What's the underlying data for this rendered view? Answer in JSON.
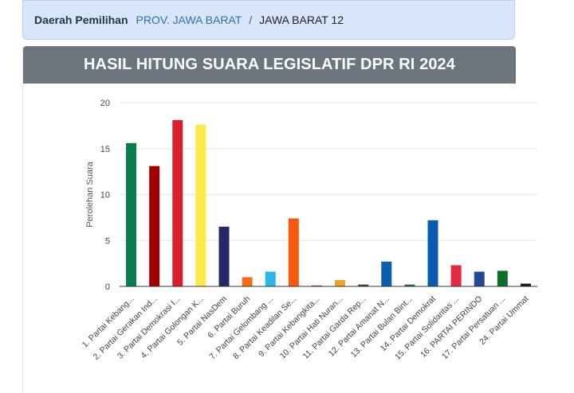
{
  "breadcrumb": {
    "label": "Daerah Pemilihan",
    "province": "PROV. JAWA BARAT",
    "separator": "/",
    "current": "JAWA BARAT 12"
  },
  "card": {
    "title": "HASIL HITUNG SUARA LEGISLATIF DPR RI 2024"
  },
  "chart_data": {
    "type": "bar",
    "title": "",
    "xlabel": "",
    "ylabel": "Perolehan Suara",
    "ylim": [
      0,
      20
    ],
    "yticks": [
      0,
      5,
      10,
      15,
      20
    ],
    "grid": true,
    "legend": "none",
    "categories": [
      "1. Partai Kebang...",
      "2. Partai Gerakan Ind...",
      "3. Partai Demokrasi I...",
      "4. Partai Golongan K...",
      "5. Partai NasDem",
      "6. Partai Buruh",
      "7. Partai Gelombang ...",
      "8. Partai Keadilan Se...",
      "9. Partai Kebangkita...",
      "10. Partai Hati Nuran...",
      "11. Partai Garda Rep...",
      "12. Partai Amanat N...",
      "13. Partai Bulan Bint...",
      "14. Partai Demokrat",
      "15. Partai Solidaritas ...",
      "16. PARTAI PERINDO",
      "17. Partai Persatuan ...",
      "24. Partai Ummat"
    ],
    "values": [
      15.6,
      13.1,
      18.1,
      17.6,
      6.5,
      1.0,
      1.6,
      7.4,
      0.1,
      0.7,
      0.2,
      2.7,
      0.2,
      7.2,
      2.3,
      1.6,
      1.7,
      0.3
    ],
    "colors": [
      "#0a7d4f",
      "#a00000",
      "#d81f2a",
      "#ffe84a",
      "#27286a",
      "#f46b1b",
      "#27b8e8",
      "#f8590d",
      "#d61f26",
      "#efa12a",
      "#3e3e3e",
      "#0a5eaa",
      "#1f6b45",
      "#0a5aae",
      "#e8283e",
      "#26488f",
      "#0f6e27",
      "#1a1a1a"
    ]
  }
}
